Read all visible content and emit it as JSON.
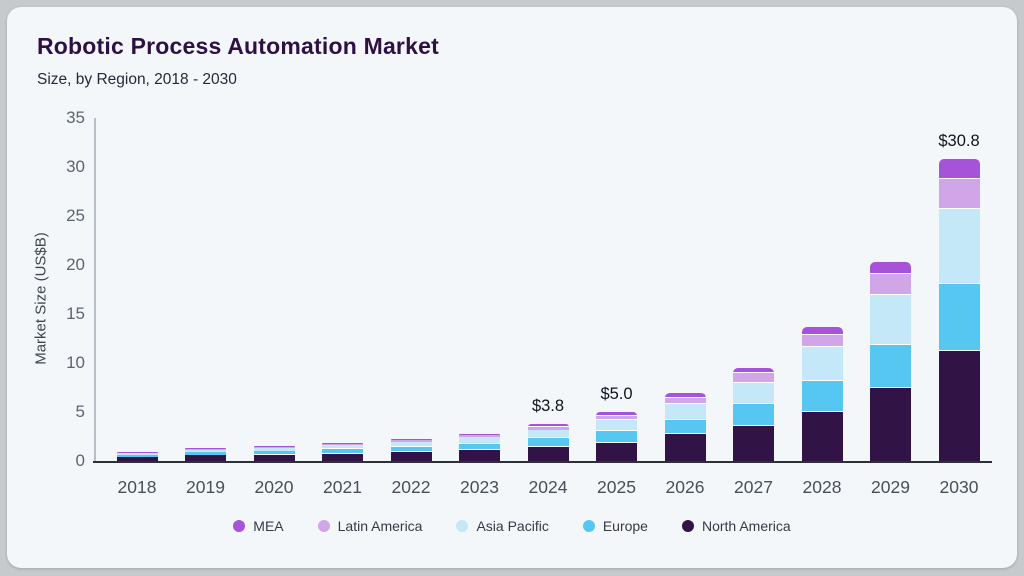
{
  "chart_data": {
    "type": "bar",
    "stacked": true,
    "title": "Robotic Process Automation Market",
    "subtitle": "Size, by Region, 2018 - 2030",
    "ylabel": "Market Size (US$B)",
    "ylim": [
      0,
      35
    ],
    "yticks": [
      0,
      5,
      10,
      15,
      20,
      25,
      30,
      35
    ],
    "grid": false,
    "legend_position": "bottom",
    "categories": [
      "2018",
      "2019",
      "2020",
      "2021",
      "2022",
      "2023",
      "2024",
      "2025",
      "2026",
      "2027",
      "2028",
      "2029",
      "2030"
    ],
    "series": [
      {
        "name": "North America",
        "color": "#321346",
        "values": [
          0.45,
          0.6,
          0.65,
          0.75,
          0.9,
          1.1,
          1.4,
          1.85,
          2.7,
          3.6,
          4.95,
          7.4,
          11.2
        ]
      },
      {
        "name": "Europe",
        "color": "#56c7f1",
        "values": [
          0.2,
          0.3,
          0.35,
          0.45,
          0.55,
          0.68,
          0.95,
          1.25,
          1.5,
          2.2,
          3.2,
          4.4,
          6.9
        ]
      },
      {
        "name": "Asia Pacific",
        "color": "#c5e8f8",
        "values": [
          0.15,
          0.25,
          0.3,
          0.4,
          0.5,
          0.62,
          0.8,
          1.05,
          1.65,
          2.15,
          3.45,
          5.1,
          7.6
        ]
      },
      {
        "name": "Latin America",
        "color": "#d0a6e9",
        "values": [
          0.05,
          0.1,
          0.12,
          0.14,
          0.18,
          0.22,
          0.3,
          0.45,
          0.6,
          1.0,
          1.3,
          2.2,
          3.1
        ]
      },
      {
        "name": "MEA",
        "color": "#a652d9",
        "values": [
          0.05,
          0.08,
          0.09,
          0.11,
          0.14,
          0.18,
          0.35,
          0.4,
          0.5,
          0.55,
          0.8,
          1.2,
          2.0
        ]
      }
    ],
    "totals": [
      0.9,
      1.33,
      1.51,
      1.85,
      2.27,
      2.8,
      3.8,
      5.0,
      6.95,
      9.5,
      13.7,
      20.3,
      30.8
    ],
    "value_labels": {
      "2024": "$3.8",
      "2025": "$5.0",
      "2030": "$30.8"
    }
  },
  "colors": {
    "card_background": "#f4f7fa",
    "page_background": "#c6cacd",
    "title_text": "#2d1145",
    "axis_text": "#5d656e",
    "baseline": "#2d3137",
    "separator": "#ffffff"
  }
}
